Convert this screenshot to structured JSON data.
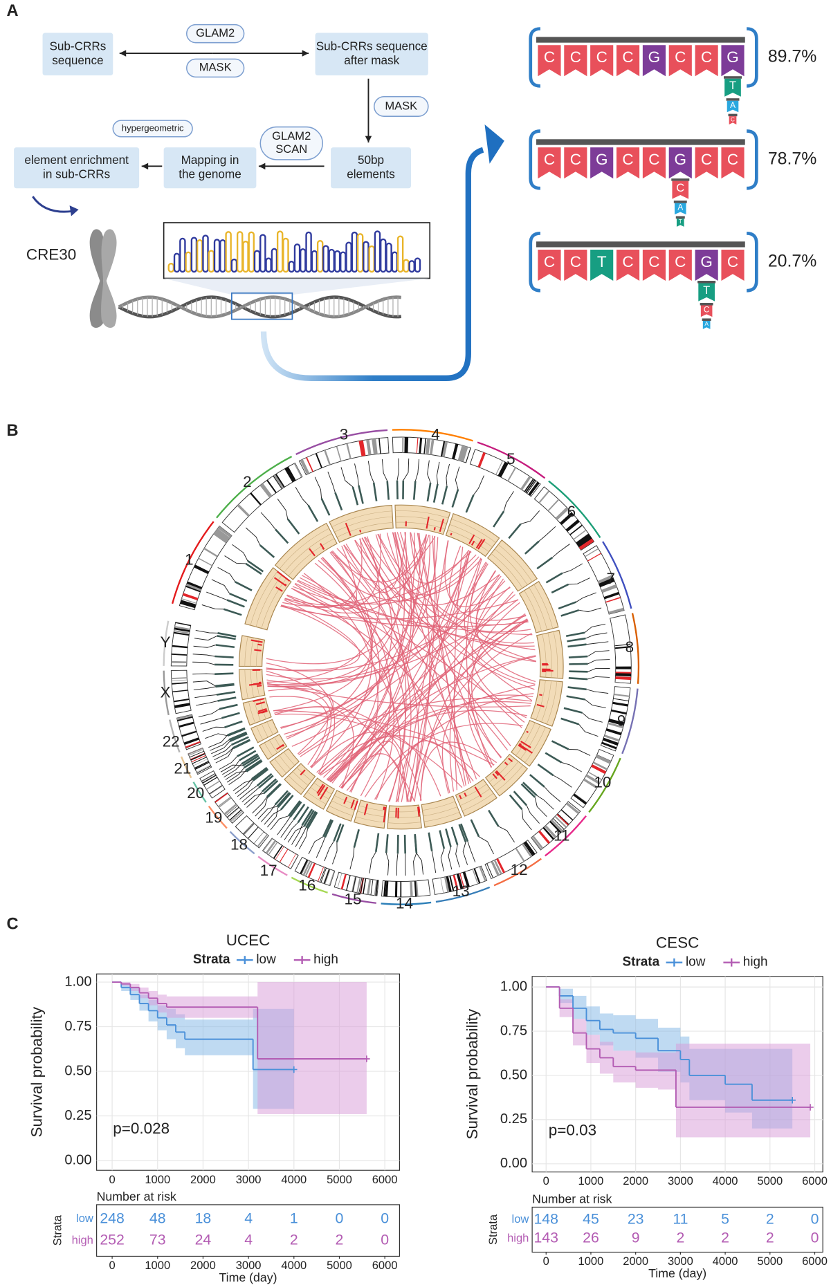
{
  "panel_a": {
    "label": "A",
    "boxes": [
      {
        "lines": [
          "Sub-CRRs",
          "sequence"
        ]
      },
      {
        "lines": [
          "Sub-CRRs sequence",
          "after mask"
        ]
      },
      {
        "lines": [
          "50bp",
          "elements"
        ]
      },
      {
        "lines": [
          "Mapping in",
          "the genome"
        ]
      },
      {
        "lines": [
          "element enrichment",
          "in sub-CRRs"
        ]
      }
    ],
    "pills": [
      {
        "lines": [
          "GLAM2"
        ]
      },
      {
        "lines": [
          "MASK"
        ]
      },
      {
        "lines": [
          "MASK"
        ]
      },
      {
        "lines": [
          "GLAM2",
          "SCAN"
        ]
      },
      {
        "lines": [
          "hypergeometric"
        ]
      }
    ],
    "element": "CRE30",
    "motifs": [
      {
        "sequence": [
          "C",
          "C",
          "C",
          "C",
          "G",
          "C",
          "C",
          "G"
        ],
        "variants": [
          "T",
          "A",
          "C"
        ],
        "percent": "89.7%"
      },
      {
        "sequence": [
          "C",
          "C",
          "G",
          "C",
          "C",
          "G",
          "C",
          "C"
        ],
        "variants": [
          "C",
          "A",
          "T"
        ],
        "percent": "78.7%"
      },
      {
        "sequence": [
          "C",
          "C",
          "T",
          "C",
          "C",
          "C",
          "G",
          "C"
        ],
        "variants": [
          "T",
          "C",
          "A"
        ],
        "percent": "20.7%"
      }
    ]
  },
  "panel_b": {
    "label": "B",
    "chromosomes": [
      "1",
      "2",
      "3",
      "4",
      "5",
      "6",
      "7",
      "8",
      "9",
      "10",
      "11",
      "12",
      "13",
      "14",
      "15",
      "16",
      "17",
      "18",
      "19",
      "20",
      "21",
      "22",
      "X",
      "Y"
    ]
  },
  "panel_c": {
    "label": "C"
  },
  "chart_data": [
    {
      "type": "line",
      "title": "UCEC",
      "legend_title": "Strata",
      "ylabel": "Survival probability",
      "annotation": "p=0.028",
      "xlim": [
        -342,
        6324
      ],
      "ylim": [
        -0.055,
        1.046
      ],
      "xticks": [
        0,
        1000,
        2000,
        3000,
        4000,
        5000,
        6000
      ],
      "yticks": [
        {
          "value": 0,
          "label": "0.00"
        },
        {
          "value": 0.25,
          "label": "0.25"
        },
        {
          "value": 0.5,
          "label": "0.50"
        },
        {
          "value": 0.75,
          "label": "0.75"
        },
        {
          "value": 1,
          "label": "1.00"
        }
      ],
      "grid": true,
      "series": [
        {
          "name": "low",
          "color": "#4a90d9",
          "band_color": "#7fb5e6",
          "x": [
            0,
            200,
            400,
            600,
            800,
            1000,
            1200,
            1400,
            1600,
            3100,
            4000
          ],
          "values": [
            1,
            0.97,
            0.93,
            0.88,
            0.84,
            0.8,
            0.76,
            0.72,
            0.68,
            0.51,
            0.51
          ],
          "lower": [
            1,
            0.95,
            0.9,
            0.84,
            0.78,
            0.73,
            0.68,
            0.63,
            0.59,
            0.29,
            0.29
          ],
          "upper": [
            1,
            0.99,
            0.97,
            0.93,
            0.9,
            0.87,
            0.85,
            0.82,
            0.79,
            0.85,
            0.85
          ]
        },
        {
          "name": "high",
          "color": "#b35cb3",
          "band_color": "#d79ad7",
          "x": [
            0,
            200,
            400,
            600,
            800,
            1000,
            1200,
            3200,
            5600
          ],
          "values": [
            1,
            0.99,
            0.97,
            0.94,
            0.91,
            0.88,
            0.86,
            0.57,
            0.57
          ],
          "lower": [
            1,
            0.98,
            0.95,
            0.91,
            0.87,
            0.83,
            0.8,
            0.26,
            0.26
          ],
          "upper": [
            1,
            1,
            0.99,
            0.97,
            0.95,
            0.93,
            0.92,
            1,
            1
          ]
        }
      ],
      "risk_table": {
        "title": "Number at risk",
        "ylabel": "Strata",
        "xlabel": "Time (day)",
        "counts": [
          [
            248,
            48,
            18,
            4,
            1,
            0,
            0
          ],
          [
            252,
            73,
            24,
            4,
            2,
            2,
            0
          ]
        ]
      }
    },
    {
      "type": "line",
      "title": "CESC",
      "legend_title": "Strata",
      "ylabel": "Survival probability",
      "annotation": "p=0.03",
      "xlim": [
        -311,
        6180
      ],
      "ylim": [
        -0.046,
        1.06
      ],
      "xticks": [
        0,
        1000,
        2000,
        3000,
        4000,
        5000,
        6000
      ],
      "yticks": [
        {
          "value": 0,
          "label": "0.00"
        },
        {
          "value": 0.25,
          "label": "0.25"
        },
        {
          "value": 0.5,
          "label": "0.50"
        },
        {
          "value": 0.75,
          "label": "0.75"
        },
        {
          "value": 1,
          "label": "1.00"
        }
      ],
      "grid": true,
      "series": [
        {
          "name": "low",
          "color": "#4a90d9",
          "band_color": "#7fb5e6",
          "x": [
            0,
            300,
            600,
            900,
            1200,
            1500,
            2000,
            2500,
            3000,
            3200,
            4000,
            4600,
            5500
          ],
          "values": [
            1,
            0.95,
            0.88,
            0.81,
            0.76,
            0.74,
            0.71,
            0.64,
            0.59,
            0.5,
            0.45,
            0.36,
            0.36
          ],
          "lower": [
            1,
            0.91,
            0.82,
            0.73,
            0.67,
            0.64,
            0.6,
            0.52,
            0.46,
            0.36,
            0.29,
            0.2,
            0.2
          ],
          "upper": [
            1,
            0.99,
            0.95,
            0.89,
            0.85,
            0.84,
            0.82,
            0.77,
            0.72,
            0.65,
            0.65,
            0.65,
            0.65
          ]
        },
        {
          "name": "high",
          "color": "#b35cb3",
          "band_color": "#d79ad7",
          "x": [
            0,
            300,
            600,
            900,
            1200,
            1500,
            2000,
            2500,
            2900,
            5900
          ],
          "values": [
            1,
            0.88,
            0.74,
            0.65,
            0.6,
            0.55,
            0.53,
            0.53,
            0.32,
            0.32
          ],
          "lower": [
            1,
            0.83,
            0.67,
            0.57,
            0.51,
            0.46,
            0.43,
            0.42,
            0.15,
            0.15
          ],
          "upper": [
            1,
            0.93,
            0.82,
            0.73,
            0.69,
            0.64,
            0.63,
            0.63,
            0.68,
            0.68
          ]
        }
      ],
      "risk_table": {
        "title": "Number at risk",
        "ylabel": "Strata",
        "xlabel": "Time (day)",
        "counts": [
          [
            148,
            45,
            23,
            11,
            5,
            2,
            0
          ],
          [
            143,
            26,
            9,
            2,
            2,
            2,
            0
          ]
        ]
      }
    }
  ]
}
